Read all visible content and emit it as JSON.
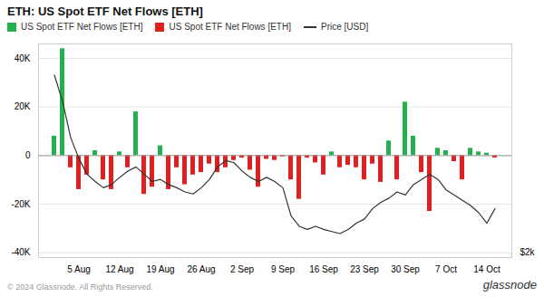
{
  "chart_data": {
    "type": "bar",
    "title": "ETH: US Spot ETF Net Flows [ETH]",
    "annotations": [
      "© 2024 Glassnode. All Rights Reserved.",
      "glassnode"
    ],
    "categories": [
      null,
      null,
      null,
      "5 Aug",
      null,
      null,
      null,
      null,
      "12 Aug",
      null,
      null,
      null,
      null,
      "19 Aug",
      null,
      null,
      null,
      null,
      "26 Aug",
      null,
      null,
      null,
      null,
      "2 Sep",
      null,
      null,
      null,
      null,
      "9 Sep",
      null,
      null,
      null,
      null,
      "16 Sep",
      null,
      null,
      null,
      null,
      "23 Sep",
      null,
      null,
      null,
      null,
      "30 Sep",
      null,
      null,
      null,
      null,
      "7 Oct",
      null,
      null,
      null,
      null,
      "14 Oct",
      null
    ],
    "series": [
      {
        "name": "US Spot ETF Net Flows [ETH]",
        "type": "bar",
        "color": "#22b14c",
        "values": [
          8000,
          44000,
          null,
          null,
          null,
          2000,
          null,
          null,
          1500,
          null,
          18000,
          null,
          null,
          4000,
          null,
          null,
          null,
          null,
          null,
          null,
          null,
          null,
          null,
          null,
          null,
          null,
          null,
          null,
          null,
          null,
          null,
          null,
          null,
          null,
          1500,
          null,
          null,
          null,
          null,
          null,
          null,
          6000,
          null,
          22000,
          8000,
          null,
          null,
          3000,
          2000,
          null,
          null,
          3000,
          1500,
          1000,
          null
        ]
      },
      {
        "name": "US Spot ETF Net Flows [ETH]",
        "type": "bar",
        "color": "#e02020",
        "values": [
          null,
          null,
          -5000,
          -14000,
          -8000,
          null,
          -10000,
          -14000,
          null,
          -5000,
          null,
          -16000,
          -13000,
          null,
          -14000,
          -5000,
          -12000,
          -8000,
          -7000,
          -3500,
          -7000,
          -5000,
          -2000,
          -1000,
          -6000,
          -13000,
          -1500,
          -2000,
          -500,
          -10000,
          -18000,
          -1000,
          -3000,
          -8000,
          null,
          -5000,
          -4000,
          -5000,
          -10000,
          -3500,
          -11000,
          null,
          -10000,
          null,
          null,
          -7000,
          -23000,
          null,
          null,
          -2500,
          -10000,
          null,
          null,
          null,
          -1000
        ]
      },
      {
        "name": "Price [USD]",
        "type": "line",
        "color": "#333333",
        "axis": "y2",
        "values": [
          19000,
          16500,
          13000,
          11000,
          9500,
          8800,
          8200,
          8500,
          9200,
          9800,
          10200,
          9500,
          8800,
          9000,
          8500,
          8200,
          7800,
          7600,
          8200,
          9000,
          10200,
          10800,
          10600,
          9800,
          9200,
          8800,
          9200,
          8800,
          8200,
          5500,
          4500,
          4200,
          4500,
          4200,
          4000,
          3800,
          4200,
          4800,
          5200,
          6200,
          6800,
          7200,
          7800,
          7500,
          8500,
          9000,
          9500,
          9000,
          8000,
          7500,
          7000,
          6500,
          5800,
          4800,
          6200
        ]
      }
    ],
    "ylim": [
      -42000,
      46000
    ],
    "yticks": [
      {
        "value": -40000,
        "label": "-40K"
      },
      {
        "value": -20000,
        "label": "-20K"
      },
      0,
      {
        "value": 20000,
        "label": "20K"
      },
      {
        "value": 40000,
        "label": "40K"
      }
    ],
    "y2lim": [
      1500,
      22000
    ],
    "y2ticks": [
      {
        "value": 2000,
        "label": "$2k"
      }
    ],
    "grid": true,
    "legend": "upper left"
  }
}
